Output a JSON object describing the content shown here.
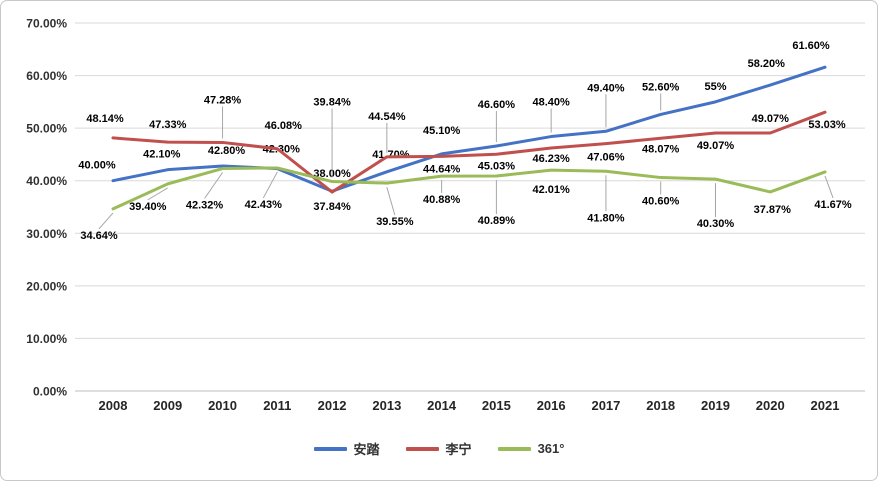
{
  "chart_data": {
    "type": "line",
    "title": "",
    "categories": [
      "2008",
      "2009",
      "2010",
      "2011",
      "2012",
      "2013",
      "2014",
      "2015",
      "2016",
      "2017",
      "2018",
      "2019",
      "2020",
      "2021"
    ],
    "series": [
      {
        "name": "安踏",
        "color": "#4472C4",
        "values": [
          40.0,
          42.1,
          42.8,
          42.3,
          38.0,
          41.7,
          45.1,
          46.6,
          48.4,
          49.4,
          52.6,
          55,
          58.2,
          61.6
        ],
        "labels": [
          "40.00%",
          "42.10%",
          "42.80%",
          "42.30%",
          "38.00%",
          "41.70%",
          "45.10%",
          "46.60%",
          "48.40%",
          "49.40%",
          "52.60%",
          "55%",
          "58.20%",
          "61.60%"
        ]
      },
      {
        "name": "李宁",
        "color": "#C0504D",
        "values": [
          48.14,
          47.33,
          47.28,
          46.08,
          37.84,
          44.54,
          44.64,
          45.03,
          46.23,
          47.06,
          48.07,
          49.07,
          49.07,
          53.03
        ],
        "labels": [
          "48.14%",
          "47.33%",
          "47.28%",
          "46.08%",
          "37.84%",
          "44.54%",
          "44.64%",
          "45.03%",
          "46.23%",
          "47.06%",
          "48.07%",
          "49.07%",
          "49.07%",
          "53.03%"
        ]
      },
      {
        "name": "361°",
        "color": "#9BBB59",
        "values": [
          34.64,
          39.4,
          42.32,
          42.43,
          39.84,
          39.55,
          40.88,
          40.89,
          42.01,
          41.8,
          40.6,
          40.3,
          37.87,
          41.67
        ],
        "labels": [
          "34.64%",
          "39.40%",
          "42.32%",
          "42.43%",
          "39.84%",
          "39.55%",
          "40.88%",
          "40.89%",
          "42.01%",
          "41.80%",
          "40.60%",
          "40.30%",
          "37.87%",
          "41.67%"
        ]
      }
    ],
    "y_axis": {
      "min": 0,
      "max": 70,
      "step": 10,
      "tick_labels": [
        "70.00%",
        "60.00%",
        "50.00%",
        "40.00%",
        "30.00%",
        "20.00%",
        "10.00%",
        "0.00%"
      ]
    },
    "legend": {
      "position": "bottom",
      "entries": [
        "安踏",
        "李宁",
        "361°"
      ]
    },
    "grid": true
  }
}
